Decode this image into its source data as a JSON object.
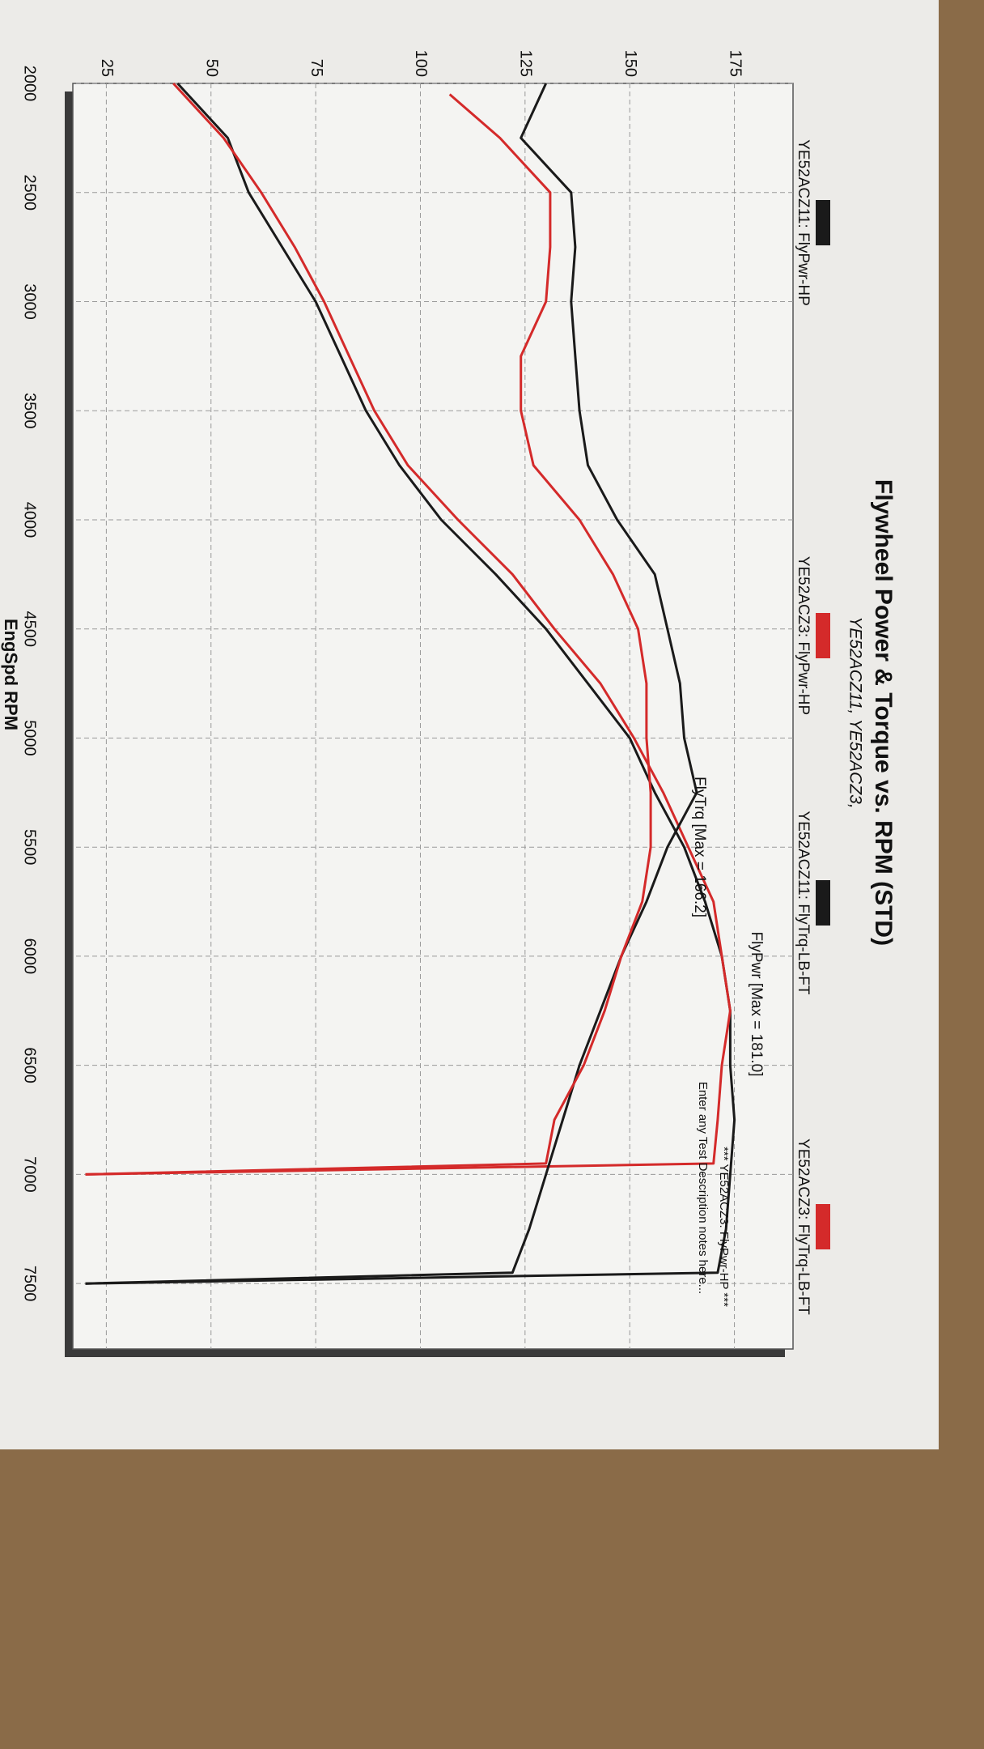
{
  "chart_data": {
    "type": "line",
    "title": "Flywheel Power & Torque vs. RPM (STD)",
    "subtitle": "YE52ACZ11, YE52ACZ3,",
    "x_label": "EngSpd RPM",
    "annotations": [
      "FlyPwr [Max = 181.0]",
      "FlyTrq [Max = 166.2]",
      "*** YE52ACZ3: FlyPwr-HP ***",
      "Enter any Test Description notes here..."
    ],
    "xlim": [
      2000,
      7800
    ],
    "xticks": [
      2000,
      2500,
      3000,
      3500,
      4000,
      4500,
      5000,
      5500,
      6000,
      6500,
      7000,
      7500
    ],
    "ylim": [
      17,
      189
    ],
    "yticks": [
      25,
      50,
      75,
      100,
      125,
      150,
      175
    ],
    "grid": true,
    "legend": "top",
    "series": [
      {
        "name": "YE52ACZ11: FlyPwr-HP",
        "color": "#1a1a1a",
        "x": [
          2000,
          2250,
          2500,
          2750,
          3000,
          3250,
          3500,
          3750,
          4000,
          4250,
          4500,
          4750,
          5000,
          5250,
          5500,
          5750,
          6000,
          6250,
          6500,
          6750,
          7000,
          7250,
          7450,
          7500
        ],
        "values": [
          42,
          54,
          59,
          67,
          75,
          81,
          87,
          95,
          105,
          118,
          130,
          140,
          150,
          156,
          163,
          168,
          172,
          174,
          174,
          175,
          174,
          173,
          171,
          20
        ]
      },
      {
        "name": "YE52ACZ3: FlyPwr-HP",
        "color": "#d42a2a",
        "x": [
          2000,
          2250,
          2500,
          2750,
          3000,
          3250,
          3500,
          3750,
          4000,
          4250,
          4500,
          4750,
          5000,
          5250,
          5500,
          5750,
          6000,
          6250,
          6500,
          6750,
          6950,
          7000
        ],
        "values": [
          41,
          53,
          62,
          70,
          77,
          83,
          89,
          97,
          109,
          122,
          132,
          143,
          151,
          158,
          164,
          170,
          172,
          174,
          172,
          171,
          170,
          20
        ]
      },
      {
        "name": "YE52ACZ11: FlyTrq-LB-FT",
        "color": "#1a1a1a",
        "x": [
          2000,
          2250,
          2500,
          2750,
          3000,
          3250,
          3500,
          3750,
          4000,
          4250,
          4500,
          4750,
          5000,
          5250,
          5500,
          5750,
          6000,
          6250,
          6500,
          6750,
          7000,
          7250,
          7450,
          7500
        ],
        "values": [
          130,
          124,
          136,
          137,
          136,
          137,
          138,
          140,
          147,
          156,
          159,
          162,
          163,
          166,
          159,
          154,
          148,
          143,
          138,
          134,
          130,
          126,
          122,
          20
        ]
      },
      {
        "name": "YE52ACZ3: FlyTrq-LB-FT",
        "color": "#d42a2a",
        "x": [
          2050,
          2250,
          2500,
          2750,
          3000,
          3250,
          3500,
          3750,
          4000,
          4250,
          4500,
          4750,
          5000,
          5250,
          5500,
          5750,
          6000,
          6250,
          6500,
          6750,
          6950,
          7000
        ],
        "values": [
          107,
          119,
          131,
          131,
          130,
          124,
          124,
          127,
          138,
          146,
          152,
          154,
          154,
          155,
          155,
          153,
          148,
          144,
          139,
          132,
          130,
          20
        ]
      }
    ]
  }
}
